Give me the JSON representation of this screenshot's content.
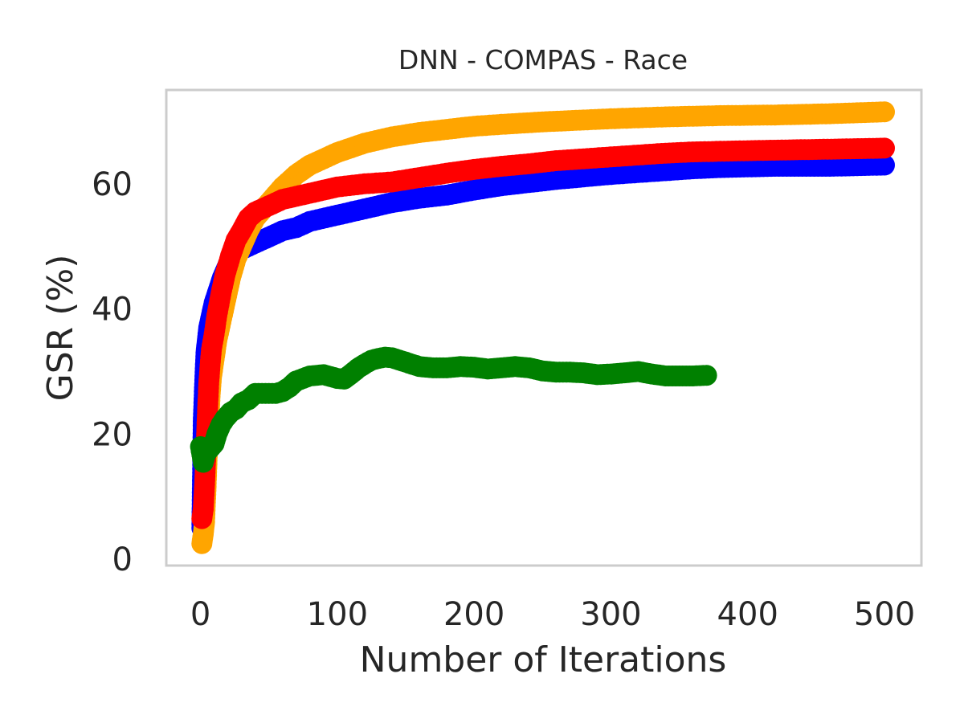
{
  "chart_data": {
    "type": "line",
    "title": "DNN - COMPAS - Race",
    "xlabel": "Number of Iterations",
    "ylabel": "GSR (%)",
    "xlim": [
      -25,
      527
    ],
    "ylim": [
      -1,
      75
    ],
    "xticks": [
      0,
      100,
      200,
      300,
      400,
      500
    ],
    "yticks": [
      0,
      20,
      40,
      60
    ],
    "xtick_labels": [
      "0",
      "100",
      "200",
      "300",
      "400",
      "500"
    ],
    "ytick_labels": [
      "0",
      "20",
      "40",
      "60"
    ],
    "grid": false,
    "legend": null,
    "series": [
      {
        "color": "#0000ff",
        "points": [
          [
            1,
            5
          ],
          [
            2,
            22
          ],
          [
            3,
            28
          ],
          [
            4,
            33
          ],
          [
            5,
            35
          ],
          [
            6,
            37
          ],
          [
            8,
            39
          ],
          [
            10,
            41
          ],
          [
            13,
            43
          ],
          [
            16,
            45
          ],
          [
            20,
            47
          ],
          [
            25,
            48.5
          ],
          [
            30,
            49.5
          ],
          [
            40,
            50.5
          ],
          [
            50,
            51.5
          ],
          [
            60,
            52.5
          ],
          [
            70,
            53
          ],
          [
            80,
            54
          ],
          [
            100,
            55
          ],
          [
            120,
            56
          ],
          [
            140,
            57
          ],
          [
            160,
            57.7
          ],
          [
            180,
            58.2
          ],
          [
            200,
            59
          ],
          [
            220,
            59.7
          ],
          [
            240,
            60.2
          ],
          [
            260,
            60.7
          ],
          [
            280,
            61.1
          ],
          [
            300,
            61.5
          ],
          [
            320,
            61.8
          ],
          [
            340,
            62.1
          ],
          [
            360,
            62.4
          ],
          [
            380,
            62.6
          ],
          [
            400,
            62.7
          ],
          [
            420,
            62.8
          ],
          [
            440,
            62.8
          ],
          [
            460,
            62.8
          ],
          [
            480,
            62.9
          ],
          [
            500,
            63
          ]
        ]
      },
      {
        "color": "#ffa500",
        "points": [
          [
            1,
            2.5
          ],
          [
            2,
            4
          ],
          [
            3,
            6
          ],
          [
            4,
            11
          ],
          [
            5,
            17
          ],
          [
            6,
            21
          ],
          [
            7,
            26
          ],
          [
            8,
            29
          ],
          [
            10,
            32
          ],
          [
            12,
            35
          ],
          [
            15,
            38
          ],
          [
            18,
            41
          ],
          [
            22,
            45
          ],
          [
            26,
            48
          ],
          [
            30,
            50
          ],
          [
            35,
            52.5
          ],
          [
            40,
            54.5
          ],
          [
            50,
            57
          ],
          [
            60,
            59.5
          ],
          [
            70,
            61.5
          ],
          [
            80,
            63
          ],
          [
            100,
            65
          ],
          [
            120,
            66.5
          ],
          [
            140,
            67.5
          ],
          [
            160,
            68.2
          ],
          [
            180,
            68.7
          ],
          [
            200,
            69.2
          ],
          [
            220,
            69.5
          ],
          [
            250,
            69.9
          ],
          [
            280,
            70.2
          ],
          [
            300,
            70.4
          ],
          [
            340,
            70.7
          ],
          [
            380,
            70.9
          ],
          [
            420,
            71
          ],
          [
            460,
            71.2
          ],
          [
            500,
            71.5
          ]
        ]
      },
      {
        "color": "#ff0000",
        "points": [
          [
            1,
            6.5
          ],
          [
            2,
            8
          ],
          [
            3,
            12
          ],
          [
            4,
            17
          ],
          [
            5,
            23
          ],
          [
            6,
            28
          ],
          [
            7,
            31
          ],
          [
            8,
            33.5
          ],
          [
            10,
            36
          ],
          [
            12,
            39
          ],
          [
            15,
            42.5
          ],
          [
            18,
            45.5
          ],
          [
            22,
            48.5
          ],
          [
            26,
            51
          ],
          [
            30,
            52.5
          ],
          [
            35,
            54.5
          ],
          [
            40,
            55.5
          ],
          [
            50,
            56.5
          ],
          [
            60,
            57.5
          ],
          [
            70,
            58
          ],
          [
            80,
            58.5
          ],
          [
            90,
            59
          ],
          [
            100,
            59.5
          ],
          [
            120,
            60
          ],
          [
            140,
            60.3
          ],
          [
            160,
            61
          ],
          [
            180,
            61.7
          ],
          [
            200,
            62.3
          ],
          [
            220,
            62.8
          ],
          [
            240,
            63.2
          ],
          [
            260,
            63.7
          ],
          [
            280,
            64
          ],
          [
            300,
            64.3
          ],
          [
            320,
            64.6
          ],
          [
            340,
            64.9
          ],
          [
            360,
            65.1
          ],
          [
            400,
            65.3
          ],
          [
            450,
            65.5
          ],
          [
            500,
            65.7
          ]
        ]
      },
      {
        "color": "#008000",
        "points": [
          [
            0,
            18
          ],
          [
            2,
            15.5
          ],
          [
            4,
            17
          ],
          [
            6,
            17.5
          ],
          [
            8,
            18
          ],
          [
            10,
            18.5
          ],
          [
            12,
            20
          ],
          [
            15,
            21.5
          ],
          [
            18,
            22.5
          ],
          [
            22,
            23.5
          ],
          [
            26,
            24
          ],
          [
            30,
            25
          ],
          [
            35,
            25.5
          ],
          [
            40,
            26.5
          ],
          [
            45,
            26.5
          ],
          [
            50,
            26.5
          ],
          [
            55,
            26.5
          ],
          [
            60,
            26.8
          ],
          [
            65,
            27.5
          ],
          [
            70,
            28.5
          ],
          [
            80,
            29.3
          ],
          [
            90,
            29.5
          ],
          [
            100,
            28.9
          ],
          [
            105,
            28.8
          ],
          [
            110,
            29.6
          ],
          [
            115,
            30.5
          ],
          [
            120,
            31.2
          ],
          [
            125,
            31.8
          ],
          [
            130,
            32.1
          ],
          [
            135,
            32.3
          ],
          [
            140,
            32.2
          ],
          [
            150,
            31.5
          ],
          [
            160,
            30.8
          ],
          [
            170,
            30.6
          ],
          [
            180,
            30.6
          ],
          [
            190,
            30.8
          ],
          [
            200,
            30.7
          ],
          [
            210,
            30.4
          ],
          [
            220,
            30.6
          ],
          [
            230,
            30.8
          ],
          [
            240,
            30.6
          ],
          [
            250,
            30.1
          ],
          [
            260,
            29.9
          ],
          [
            270,
            29.9
          ],
          [
            280,
            29.8
          ],
          [
            290,
            29.5
          ],
          [
            300,
            29.6
          ],
          [
            310,
            29.8
          ],
          [
            320,
            30
          ],
          [
            330,
            29.6
          ],
          [
            340,
            29.3
          ],
          [
            350,
            29.3
          ],
          [
            360,
            29.3
          ],
          [
            370,
            29.4
          ]
        ]
      }
    ]
  }
}
